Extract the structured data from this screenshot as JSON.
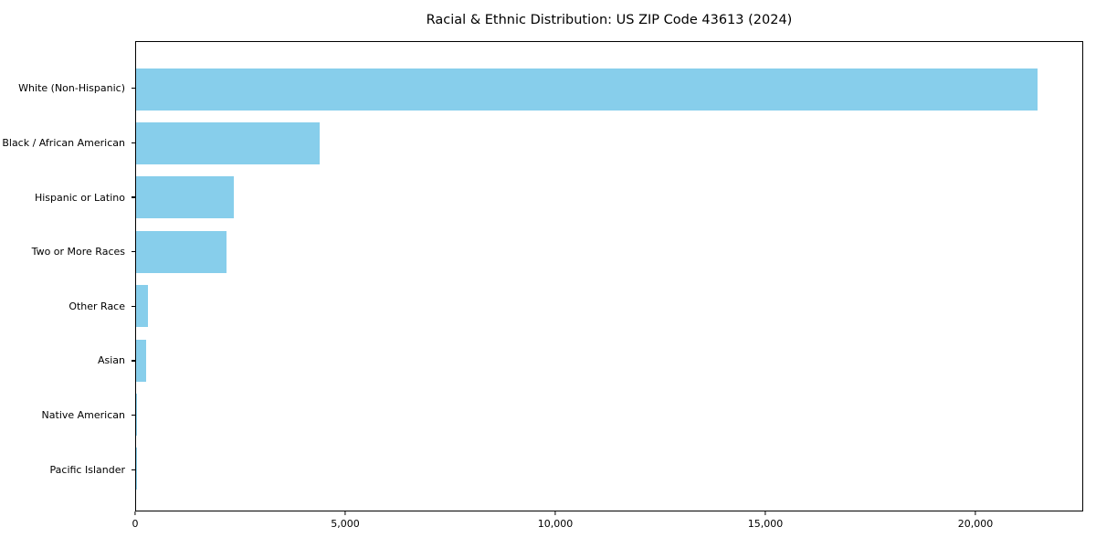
{
  "figure": {
    "background": "#ffffff"
  },
  "chart_data": {
    "type": "bar",
    "orientation": "horizontal",
    "title": "Racial & Ethnic Distribution: US ZIP Code 43613 (2024)",
    "categories": [
      "White (Non-Hispanic)",
      "Black / African American",
      "Hispanic or Latino",
      "Two or More Races",
      "Other Race",
      "Asian",
      "Native American",
      "Pacific Islander"
    ],
    "values": [
      21500,
      4370,
      2330,
      2150,
      280,
      240,
      20,
      10
    ],
    "xlabel": "",
    "ylabel": "",
    "xlim": [
      0,
      22565
    ],
    "x_ticks": [
      0,
      5000,
      10000,
      15000,
      20000
    ],
    "x_tick_labels": [
      "0",
      "5,000",
      "10,000",
      "15,000",
      "20,000"
    ],
    "bar_color": "#87CEEB",
    "axis_color": "#000000",
    "grid": false,
    "legend": false
  }
}
